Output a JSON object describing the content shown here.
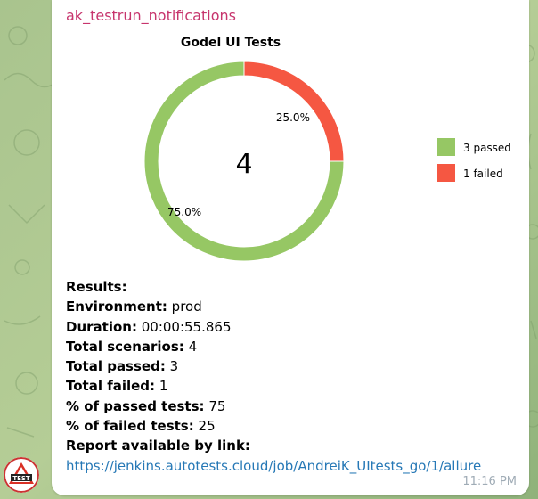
{
  "message": {
    "sender": "ak_testrun_notifications",
    "time": "11:16 PM",
    "avatar_label": "TEST"
  },
  "colors": {
    "passed": "#96c764",
    "failed": "#f55742",
    "sender": "#c7356d",
    "link": "#2678b6"
  },
  "chart_data": {
    "type": "pie",
    "title": "Godel UI Tests",
    "center_label": "4",
    "slices": [
      {
        "label": "3 passed",
        "value": 3,
        "percent_label": "75.0%",
        "color": "#96c764"
      },
      {
        "label": "1 failed",
        "value": 1,
        "percent_label": "25.0%",
        "color": "#f55742"
      }
    ],
    "legend_position": "right"
  },
  "results": {
    "heading": "Results:",
    "environment_label": "Environment:",
    "environment": "prod",
    "duration_label": "Duration:",
    "duration": "00:00:55.865",
    "total_scenarios_label": "Total scenarios:",
    "total_scenarios": "4",
    "total_passed_label": "Total passed:",
    "total_passed": "3",
    "total_failed_label": "Total failed:",
    "total_failed": "1",
    "pct_passed_label": "% of passed tests:",
    "pct_passed": "75",
    "pct_failed_label": "% of failed tests:",
    "pct_failed": "25",
    "report_label": "Report available by link:",
    "report_link": "https://jenkins.autotests.cloud/job/AndreiK_UItests_go/1/allure"
  }
}
